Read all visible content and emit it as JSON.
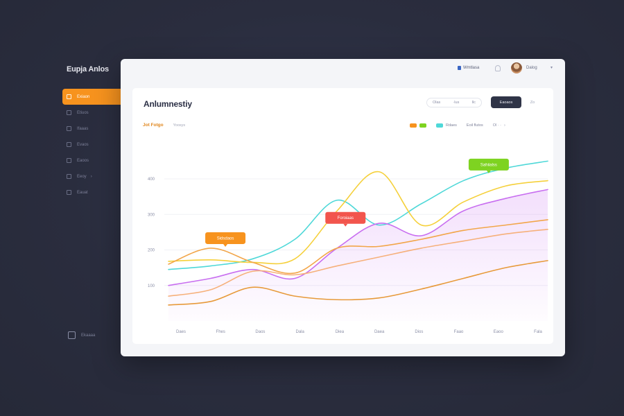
{
  "app": {
    "brand": "Eupja Anlos"
  },
  "sidebar": {
    "items": [
      {
        "label": "Exiaon",
        "icon": "home-icon",
        "active": true
      },
      {
        "label": "Etiuos",
        "icon": "grid-icon"
      },
      {
        "label": "Ifaaas",
        "icon": "chart-icon"
      },
      {
        "label": "Evaos",
        "icon": "folder-icon"
      },
      {
        "label": "Eaoos",
        "icon": "users-icon"
      },
      {
        "label": "Eeoy",
        "icon": "settings-icon",
        "caret": "›"
      },
      {
        "label": "Eauat",
        "icon": "file-icon"
      }
    ],
    "logout_label": "Ekaaaa"
  },
  "topbar": {
    "status_label": "Wmtlasa",
    "user_name": "Dalog",
    "caret": "▾"
  },
  "card": {
    "title": "Anlumnestiy",
    "range": {
      "left": "Olas",
      "mid": "·lus",
      "right": "Ilc"
    },
    "export_label": "Eaoaos",
    "more_label": "Zo",
    "subtab_active": "Jot Fotgo",
    "subtab": "Yoosys"
  },
  "legend": {
    "items": [
      {
        "label": "",
        "colors": [
          "#f7931e",
          "#7ed321"
        ]
      },
      {
        "label": "Rdaes",
        "colors": [
          "#4ed8d8"
        ]
      }
    ],
    "extra_label": "Eoil flutos",
    "toggle_label": "Ol · ·",
    "caret": "›"
  },
  "colors": {
    "orange": "#f7931e",
    "green": "#7ed321",
    "cyan": "#4ed8d8",
    "yellow": "#f5d03a",
    "purple": "#c86ef0",
    "peach": "#f6b07a",
    "red": "#f2554d"
  },
  "chart_data": {
    "type": "line",
    "y_ticks": [
      "400",
      "300",
      "200",
      "100"
    ],
    "x_ticks": [
      "Daes",
      "Fhes",
      "Daos",
      "Dala",
      "Diea",
      "Daea",
      "Dios",
      "Faao",
      "Eaoo",
      "Fala"
    ],
    "ylim": [
      0,
      480
    ],
    "x": [
      0,
      1,
      2,
      3,
      4,
      5,
      6,
      7,
      8,
      9
    ],
    "series": [
      {
        "color": "#4ed8d8",
        "values": [
          145,
          155,
          175,
          230,
          340,
          270,
          330,
          395,
          430,
          450
        ]
      },
      {
        "color": "#f5d03a",
        "values": [
          168,
          172,
          165,
          175,
          310,
          420,
          270,
          335,
          380,
          395
        ]
      },
      {
        "color": "#c86ef0",
        "values": [
          100,
          120,
          145,
          120,
          205,
          275,
          240,
          310,
          345,
          370
        ],
        "fill": true
      },
      {
        "color": "#f2a64a",
        "values": [
          160,
          205,
          165,
          135,
          205,
          210,
          230,
          255,
          270,
          285
        ]
      },
      {
        "color": "#f6b07a",
        "values": [
          70,
          88,
          140,
          130,
          155,
          180,
          205,
          225,
          245,
          258
        ]
      },
      {
        "color": "#e79a3a",
        "values": [
          45,
          55,
          95,
          70,
          60,
          65,
          90,
          120,
          150,
          170
        ]
      }
    ],
    "callouts": [
      {
        "label": "Sidsdaos",
        "color": "#f7931e",
        "x": 1.35,
        "y": 205
      },
      {
        "label": "Foroiaas",
        "color": "#f2554d",
        "x": 4.2,
        "y": 262
      },
      {
        "label": "Sahiialss",
        "color": "#7ed321",
        "x": 7.6,
        "y": 412
      }
    ]
  }
}
